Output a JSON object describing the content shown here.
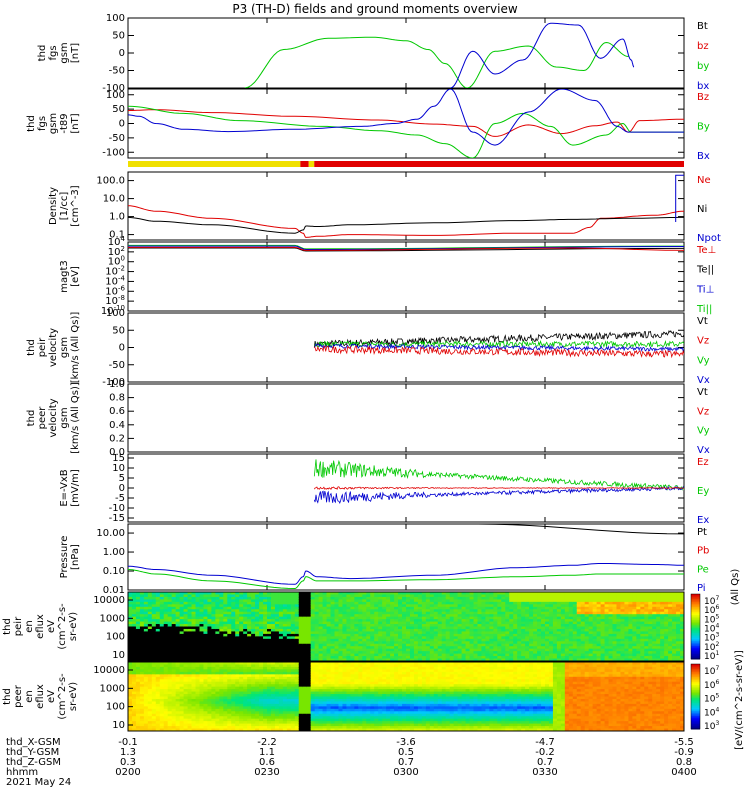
{
  "title": "P3 (TH-D) fields and ground moments overview",
  "colors": {
    "black": "#000000",
    "red": "#e00000",
    "green": "#00c800",
    "blue": "#0000d0",
    "yellow": "#f0e000",
    "bar_red": "#e00000"
  },
  "chart_data": [
    {
      "id": "fgs",
      "type": "line",
      "ylabel": [
        "thd",
        "fgs",
        "gsm",
        "[nT]"
      ],
      "ylim": [
        -100,
        100
      ],
      "yticks": [
        "100",
        "50",
        "0",
        "-50",
        "-100"
      ],
      "yticks_values": [
        100,
        50,
        0,
        -50,
        -100
      ],
      "legend": [
        {
          "name": "Bt",
          "color": "#000000"
        },
        {
          "name": "bz",
          "color": "#e00000"
        },
        {
          "name": "by",
          "color": "#00c800"
        },
        {
          "name": "bx",
          "color": "#0000d0"
        }
      ],
      "series": [
        {
          "name": "by",
          "color": "#00c800",
          "x": [
            0.21,
            0.28,
            0.36,
            0.44,
            0.5,
            0.54,
            0.57,
            0.61,
            0.66,
            0.72,
            0.77,
            0.82,
            0.86,
            0.9
          ],
          "y": [
            -100,
            10,
            42,
            45,
            35,
            10,
            -30,
            -100,
            5,
            20,
            -40,
            -50,
            30,
            -10
          ]
        },
        {
          "name": "bx",
          "color": "#0000d0",
          "x": [
            0.58,
            0.62,
            0.66,
            0.71,
            0.76,
            0.81,
            0.85,
            0.89,
            0.905,
            0.91
          ],
          "y": [
            -100,
            5,
            -60,
            -20,
            85,
            80,
            -15,
            40,
            -20,
            -40
          ]
        }
      ]
    },
    {
      "id": "fgs_t89",
      "type": "line",
      "ylabel": [
        "thd",
        "fgs",
        "gsm",
        "-t89",
        "[nT]"
      ],
      "ylim": [
        -120,
        120
      ],
      "yticks": [
        "100",
        "50",
        "0",
        "-50",
        "-100"
      ],
      "yticks_values": [
        100,
        50,
        0,
        -50,
        -100
      ],
      "legend": [
        {
          "name": "Bz",
          "color": "#e00000"
        },
        {
          "name": "By",
          "color": "#00c800"
        },
        {
          "name": "Bx",
          "color": "#0000d0"
        }
      ],
      "series": [
        {
          "name": "Bz",
          "color": "#e00000",
          "x": [
            0,
            0.05,
            0.15,
            0.3,
            0.45,
            0.55,
            0.62,
            0.66,
            0.72,
            0.78,
            0.84,
            0.88,
            0.9,
            0.92,
            1.0
          ],
          "y": [
            45,
            48,
            38,
            25,
            12,
            -2,
            -10,
            -45,
            -5,
            -35,
            -8,
            5,
            -30,
            10,
            15
          ]
        },
        {
          "name": "By",
          "color": "#00c800",
          "x": [
            0,
            0.1,
            0.2,
            0.35,
            0.45,
            0.52,
            0.57,
            0.62,
            0.66,
            0.71,
            0.76,
            0.8,
            0.86,
            0.89,
            0.905,
            0.91,
            1.0
          ],
          "y": [
            60,
            35,
            10,
            -10,
            -25,
            -40,
            -70,
            -120,
            0,
            35,
            -10,
            -75,
            -40,
            0,
            -30,
            -30,
            -30
          ]
        },
        {
          "name": "Bx",
          "color": "#0000d0",
          "x": [
            0,
            0.02,
            0.05,
            0.1,
            0.18,
            0.3,
            0.42,
            0.48,
            0.52,
            0.55,
            0.58,
            0.62,
            0.66,
            0.72,
            0.78,
            0.84,
            0.88,
            0.9,
            1.0
          ],
          "y": [
            30,
            25,
            0,
            -20,
            -28,
            -20,
            -10,
            0,
            15,
            60,
            120,
            -30,
            -75,
            40,
            120,
            80,
            -10,
            -30,
            -30
          ]
        }
      ]
    },
    {
      "id": "mode_bar",
      "type": "bar",
      "segments": [
        {
          "from": 0,
          "to": 0.31,
          "color": "#f0e000"
        },
        {
          "from": 0.31,
          "to": 0.325,
          "color": "#e00000"
        },
        {
          "from": 0.325,
          "to": 0.335,
          "color": "#f0e000"
        },
        {
          "from": 0.335,
          "to": 1.0,
          "color": "#e00000"
        }
      ]
    },
    {
      "id": "density",
      "type": "line",
      "ylabel": [
        "Density",
        "[1/cc]",
        "[cm^-3]"
      ],
      "scale": "log",
      "ylim": [
        0.05,
        300
      ],
      "yticks": [
        "100.0",
        "10.0",
        "1.0",
        "0.1"
      ],
      "yticks_values": [
        100,
        10,
        1,
        0.1
      ],
      "legend": [
        {
          "name": "Ne",
          "color": "#e00000"
        },
        {
          "name": "Ni",
          "color": "#000000"
        },
        {
          "name": "Npot",
          "color": "#0000d0"
        }
      ],
      "series": [
        {
          "name": "Ne",
          "color": "#e00000",
          "x": [
            0,
            0.05,
            0.15,
            0.3,
            0.315,
            0.32,
            0.34,
            0.4,
            0.55,
            0.7,
            0.8,
            0.83,
            0.85,
            0.95,
            1.0
          ],
          "y": [
            4,
            2.0,
            0.8,
            0.22,
            0.12,
            0.07,
            0.08,
            0.1,
            0.09,
            0.12,
            0.12,
            0.25,
            0.8,
            1.2,
            2.0
          ]
        },
        {
          "name": "Ni",
          "color": "#000000",
          "x": [
            0,
            0.05,
            0.15,
            0.3,
            0.315,
            0.32,
            0.34,
            0.4,
            0.55,
            0.7,
            0.8,
            0.9,
            1.0
          ],
          "y": [
            0.9,
            0.55,
            0.35,
            0.12,
            0.18,
            0.3,
            0.28,
            0.35,
            0.45,
            0.6,
            0.7,
            0.8,
            0.9
          ]
        },
        {
          "name": "Npot",
          "color": "#0000d0",
          "x": [
            0.985,
            0.985,
            1.0
          ],
          "y": [
            0.5,
            200,
            200
          ]
        }
      ]
    },
    {
      "id": "magt3",
      "type": "line",
      "ylabel": [
        "magt3",
        "[eV]"
      ],
      "scale": "log",
      "ylim": [
        1e-10,
        10000.0
      ],
      "yticks": [
        "10^4",
        "10^2",
        "10^0",
        "10^-2",
        "10^-4",
        "10^-6",
        "10^-8",
        "10^-10"
      ],
      "yticks_values": [
        10000.0,
        100.0,
        1,
        0.01,
        0.0001,
        1e-06,
        1e-08,
        1e-10
      ],
      "legend": [
        {
          "name": "Te⊥",
          "color": "#e00000"
        },
        {
          "name": "Te||",
          "color": "#000000"
        },
        {
          "name": "Ti⊥",
          "color": "#0000d0"
        },
        {
          "name": "Ti||",
          "color": "#00c800"
        }
      ],
      "series": [
        {
          "name": "Ti||",
          "color": "#00c800",
          "x": [
            0,
            0.3,
            0.32,
            1.0
          ],
          "y": [
            2000,
            2000,
            400,
            1500
          ]
        },
        {
          "name": "Ti⊥",
          "color": "#0000d0",
          "x": [
            0,
            0.3,
            0.32,
            1.0
          ],
          "y": [
            1500,
            1500,
            300,
            1200
          ]
        },
        {
          "name": "Te||",
          "color": "#000000",
          "x": [
            0,
            0.3,
            0.32,
            1.0
          ],
          "y": [
            600,
            600,
            150,
            500
          ]
        },
        {
          "name": "Te⊥",
          "color": "#e00000",
          "x": [
            0,
            0.3,
            0.32,
            0.8,
            1.0
          ],
          "y": [
            800,
            800,
            200,
            600,
            200
          ]
        }
      ]
    },
    {
      "id": "peir_velocity",
      "type": "line",
      "ylabel": [
        "thd",
        "peir",
        "velocity",
        "gsm",
        "[km/s (All Qs)]"
      ],
      "ylim": [
        -100,
        100
      ],
      "yticks": [
        "100",
        "50",
        "0",
        "-50",
        "-100"
      ],
      "yticks_values": [
        100,
        50,
        0,
        -50,
        -100
      ],
      "legend": [
        {
          "name": "Vt",
          "color": "#000000"
        },
        {
          "name": "Vz",
          "color": "#e00000"
        },
        {
          "name": "Vy",
          "color": "#00c800"
        },
        {
          "name": "Vx",
          "color": "#0000d0"
        }
      ],
      "x_start": 0.335,
      "noisy_series": [
        {
          "name": "Vt",
          "color": "#000000",
          "start": 10,
          "end": 40,
          "noise": 10
        },
        {
          "name": "Vy",
          "color": "#00c800",
          "start": 10,
          "end": 10,
          "noise": 8
        },
        {
          "name": "Vx",
          "color": "#0000d0",
          "start": 5,
          "end": -5,
          "noise": 6
        },
        {
          "name": "Vz",
          "color": "#e00000",
          "start": -5,
          "end": -20,
          "noise": 10
        }
      ]
    },
    {
      "id": "peer_velocity",
      "type": "line",
      "ylabel": [
        "thd",
        "peer",
        "velocity",
        "gsm",
        "[km/s (All Qs)]"
      ],
      "ylim": [
        0,
        1
      ],
      "yticks": [
        "1.0",
        "0.8",
        "0.6",
        "0.4",
        "0.2",
        "0.0"
      ],
      "yticks_values": [
        1,
        0.8,
        0.6,
        0.4,
        0.2,
        0
      ],
      "legend": [
        {
          "name": "Vt",
          "color": "#000000"
        },
        {
          "name": "Vz",
          "color": "#e00000"
        },
        {
          "name": "Vy",
          "color": "#00c800"
        },
        {
          "name": "Vx",
          "color": "#0000d0"
        }
      ]
    },
    {
      "id": "efield",
      "type": "line",
      "ylabel": [
        "E=-VxB",
        "[mV/m]"
      ],
      "ylim": [
        -17,
        17
      ],
      "yticks": [
        "15",
        "10",
        "5",
        "0",
        "-5",
        "-10",
        "-15"
      ],
      "yticks_values": [
        15,
        10,
        5,
        0,
        -5,
        -10,
        -15
      ],
      "legend": [
        {
          "name": "Ez",
          "color": "#e00000"
        },
        {
          "name": "Ey",
          "color": "#00c800"
        },
        {
          "name": "Ex",
          "color": "#0000d0"
        }
      ],
      "x_start": 0.335,
      "noisy_series": [
        {
          "name": "Ey",
          "color": "#00c800",
          "start": 10,
          "end": 0,
          "noise": 4
        },
        {
          "name": "Ex",
          "color": "#0000d0",
          "start": -5,
          "end": 0,
          "noise": 3
        },
        {
          "name": "Ez",
          "color": "#e00000",
          "start": 0,
          "end": 0,
          "noise": 0.6
        }
      ]
    },
    {
      "id": "pressure",
      "type": "line",
      "ylabel": [
        "Pressure",
        "[nPa]"
      ],
      "scale": "log",
      "ylim": [
        0.01,
        30
      ],
      "yticks": [
        "10.00",
        "1.00",
        "0.10",
        "0.01"
      ],
      "yticks_values": [
        10,
        1,
        0.1,
        0.01
      ],
      "legend": [
        {
          "name": "Pt",
          "color": "#000000"
        },
        {
          "name": "Pb",
          "color": "#e00000"
        },
        {
          "name": "Pe",
          "color": "#00c800"
        },
        {
          "name": "Pi",
          "color": "#0000d0"
        }
      ],
      "right_label": "(All Qs)",
      "series": [
        {
          "name": "Pt",
          "color": "#000000",
          "x": [
            0.63,
            1.0
          ],
          "y": [
            30,
            9
          ]
        },
        {
          "name": "Pi",
          "color": "#0000d0",
          "x": [
            0,
            0.05,
            0.15,
            0.3,
            0.315,
            0.32,
            0.34,
            0.4,
            0.55,
            0.7,
            0.8,
            0.85,
            0.95,
            1.0
          ],
          "y": [
            0.18,
            0.12,
            0.06,
            0.02,
            0.05,
            0.1,
            0.05,
            0.04,
            0.06,
            0.15,
            0.2,
            0.25,
            0.22,
            0.2
          ]
        },
        {
          "name": "Pe",
          "color": "#00c800",
          "x": [
            0,
            0.05,
            0.15,
            0.3,
            0.315,
            0.32,
            0.34,
            0.4,
            0.55,
            0.7,
            0.8,
            0.85,
            0.95,
            1.0
          ],
          "y": [
            0.12,
            0.07,
            0.03,
            0.012,
            0.03,
            0.05,
            0.03,
            0.03,
            0.035,
            0.05,
            0.06,
            0.07,
            0.07,
            0.07
          ]
        }
      ]
    },
    {
      "id": "peir_spec",
      "type": "heatmap",
      "ylabel": [
        "thd",
        "peir",
        "en",
        "eflux",
        "eV",
        "(cm^2-s-",
        "sr-eV)"
      ],
      "yticks": [
        "10000",
        "1000",
        "100",
        "10"
      ],
      "colorbar": {
        "label": "[eV/(cm^2-s-sr-eV)]",
        "ticks": [
          "10^7",
          "10^6",
          "10^5",
          "10^4",
          "10^3",
          "10^2",
          "10^1"
        ]
      }
    },
    {
      "id": "peer_spec",
      "type": "heatmap",
      "ylabel": [
        "thd",
        "peer",
        "en",
        "eflux",
        "eV",
        "(cm^2-s-",
        "sr-eV)"
      ],
      "yticks": [
        "10000",
        "1000",
        "100",
        "10"
      ],
      "colorbar": {
        "label": "[eV/(cm^2-s-sr-eV)]",
        "ticks": [
          "10^7",
          "10^6",
          "10^5",
          "10^4",
          "10^3"
        ]
      }
    }
  ],
  "xaxis": {
    "row_labels": [
      "thd_X-GSM",
      "thd_Y-GSM",
      "thd_Z-GSM",
      "hhmm",
      "2021 May 24"
    ],
    "columns": [
      {
        "x": 0.0,
        "vals": [
          "-0.1",
          "1.3",
          "0.3",
          "0200"
        ]
      },
      {
        "x": 0.25,
        "vals": [
          "-2.2",
          "1.1",
          "0.6",
          "0230"
        ]
      },
      {
        "x": 0.5,
        "vals": [
          "-3.6",
          "0.5",
          "0.7",
          "0300"
        ]
      },
      {
        "x": 0.75,
        "vals": [
          "-4.7",
          "-0.2",
          "0.7",
          "0330"
        ]
      },
      {
        "x": 1.0,
        "vals": [
          "-5.5",
          "-0.9",
          "0.8",
          "0400"
        ]
      }
    ]
  },
  "colorbar_label": "[eV/(cm^2-s-sr-eV)]"
}
